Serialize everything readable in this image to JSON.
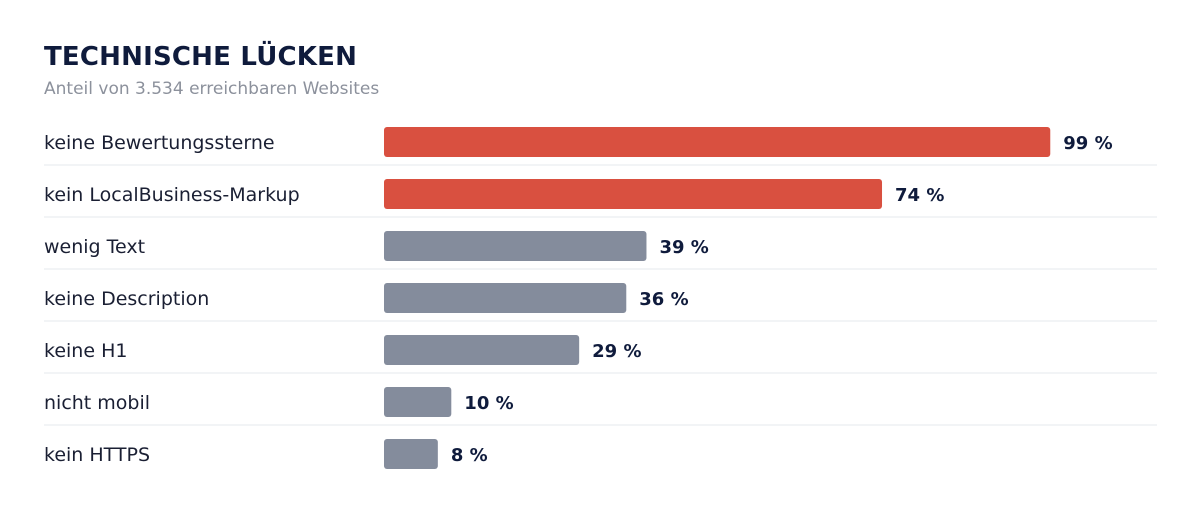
{
  "chart_data": {
    "type": "bar",
    "orientation": "horizontal",
    "title": "TECHNISCHE LÜCKEN",
    "subtitle": "Anteil von 3.534 erreichbaren Websites",
    "categories": [
      "keine Bewertungssterne",
      "kein LocalBusiness-Markup",
      "wenig Text",
      "keine Description",
      "keine H1",
      "nicht mobil",
      "kein HTTPS"
    ],
    "values": [
      99,
      74,
      39,
      36,
      29,
      10,
      8
    ],
    "value_labels": [
      "99 %",
      "74 %",
      "39 %",
      "36 %",
      "29 %",
      "10 %",
      "8 %"
    ],
    "highlight_colors": [
      "#d95040",
      "#d95040",
      "#848c9c",
      "#848c9c",
      "#848c9c",
      "#848c9c",
      "#848c9c"
    ],
    "xlim": [
      0,
      100
    ],
    "grid": false
  }
}
